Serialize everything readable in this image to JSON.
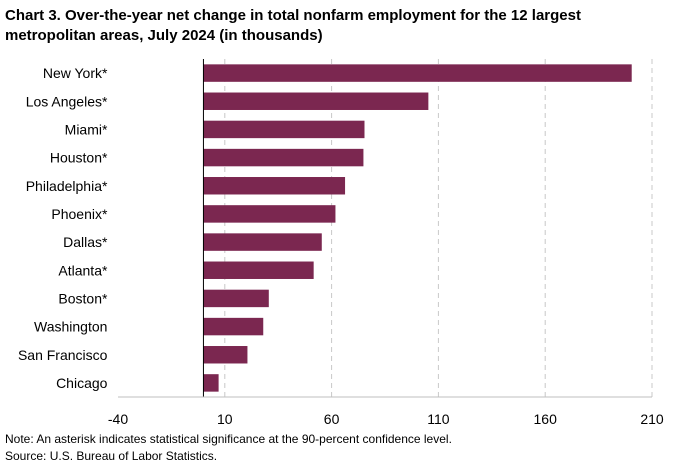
{
  "chart_data": {
    "type": "bar",
    "orientation": "horizontal",
    "title": "Chart 3. Over-the-year net change in total nonfarm employment for the 12 largest metropolitan areas, July 2024 (in thousands)",
    "categories": [
      "New York*",
      "Los Angeles*",
      "Miami*",
      "Houston*",
      "Philadelphia*",
      "Phoenix*",
      "Dallas*",
      "Atlanta*",
      "Boston*",
      "Washington",
      "San Francisco",
      "Chicago"
    ],
    "values": [
      200.5,
      105.3,
      75.4,
      74.9,
      66.3,
      61.8,
      55.4,
      51.6,
      30.6,
      28.0,
      20.6,
      7.1
    ],
    "xlim": [
      -40,
      210
    ],
    "xticks": [
      -40,
      10,
      60,
      110,
      160,
      210
    ],
    "grid": "vertical dashed",
    "bar_color": "#7b2750",
    "legend": "none"
  },
  "notes": {
    "note": "Note: An asterisk indicates statistical significance at the 90-percent confidence level.",
    "source": "Source: U.S. Bureau of Labor Statistics."
  }
}
